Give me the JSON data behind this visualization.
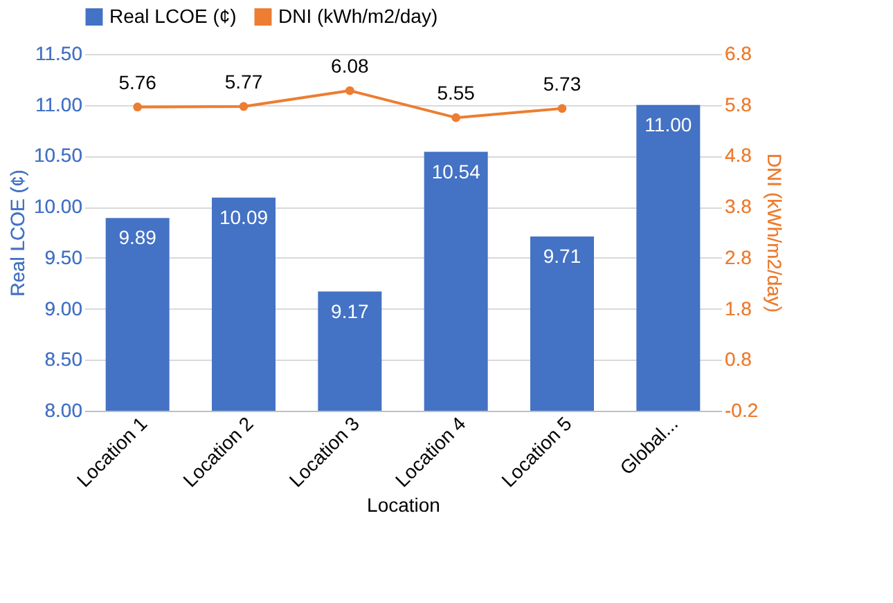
{
  "chart_data": {
    "type": "bar",
    "xlabel": "Location",
    "ylabel": "Real LCOE (¢)",
    "y2label": "DNI (kWh/m2/day)",
    "categories": [
      "Location 1",
      "Location 2",
      "Location 3",
      "Location 4",
      "Location 5",
      "Global..."
    ],
    "series": [
      {
        "name": "Real LCOE (¢)",
        "color": "#4472c4",
        "values": [
          9.89,
          10.09,
          9.17,
          10.54,
          9.71,
          11.0
        ],
        "value_labels": [
          "9.89",
          "10.09",
          "9.17",
          "10.54",
          "9.71",
          "11.00"
        ]
      },
      {
        "name": "DNI (kWh/m2/day)",
        "color": "#ed7d31",
        "type": "line",
        "axis": "y2",
        "marker": "circle",
        "values": [
          5.76,
          5.77,
          6.08,
          5.55,
          5.73,
          null
        ],
        "value_labels": [
          "5.76",
          "5.77",
          "6.08",
          "5.55",
          "5.73",
          null
        ]
      }
    ],
    "ylim": [
      8.0,
      11.5
    ],
    "yticks": [
      {
        "value": 8.0,
        "label": "8.00"
      },
      {
        "value": 8.5,
        "label": "8.50"
      },
      {
        "value": 9.0,
        "label": "9.00"
      },
      {
        "value": 9.5,
        "label": "9.50"
      },
      {
        "value": 10.0,
        "label": "10.00"
      },
      {
        "value": 10.5,
        "label": "10.50"
      },
      {
        "value": 11.0,
        "label": "11.00"
      },
      {
        "value": 11.5,
        "label": "11.50"
      }
    ],
    "y2lim": [
      -0.2,
      6.8
    ],
    "y2ticks": [
      -0.2,
      0.8,
      1.8,
      2.8,
      3.8,
      4.8,
      5.8,
      6.8
    ],
    "grid": "y",
    "legend": "top"
  }
}
